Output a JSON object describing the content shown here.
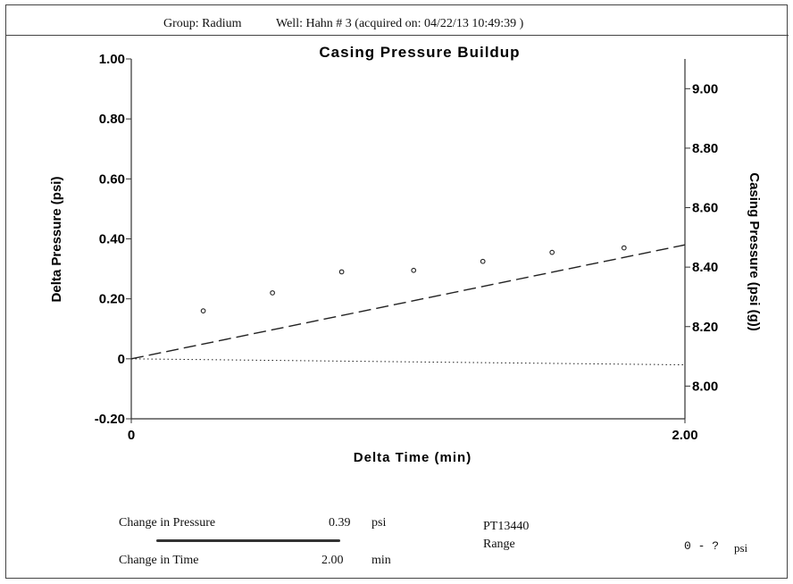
{
  "header": {
    "group": "Group: Radium",
    "well": "Well: Hahn # 3 (acquired on: 04/22/13 10:49:39 )"
  },
  "chart_data": {
    "type": "scatter",
    "title": "Casing Pressure Buildup",
    "xlabel": "Delta Time (min)",
    "ylabel": "Delta Pressure (psi)",
    "y2label": "Casing Pressure (psi (g))",
    "xlim": [
      0,
      2.0
    ],
    "ylim": [
      -0.2,
      1.0
    ],
    "y2lim": [
      7.89,
      9.1
    ],
    "x_ticks": [
      "0",
      "2.00"
    ],
    "y_ticks": [
      "-0.20",
      "0",
      "0.20",
      "0.40",
      "0.60",
      "0.80",
      "1.00"
    ],
    "y2_ticks": [
      "8.00",
      "8.20",
      "8.40",
      "8.60",
      "8.80",
      "9.00"
    ],
    "grid": false,
    "series": [
      {
        "style": "points",
        "x": [
          0.26,
          0.51,
          0.76,
          1.02,
          1.27,
          1.52,
          1.78
        ],
        "y": [
          0.16,
          0.22,
          0.29,
          0.295,
          0.325,
          0.355,
          0.37
        ]
      },
      {
        "style": "dashed-line",
        "x": [
          0,
          2.0
        ],
        "y": [
          0,
          0.38
        ]
      },
      {
        "style": "dotted-line",
        "x": [
          0,
          2.0
        ],
        "y": [
          0,
          -0.02
        ]
      }
    ]
  },
  "footer": {
    "change_pressure_label": "Change in Pressure",
    "change_pressure_value": "0.39",
    "change_pressure_unit": "psi",
    "change_time_label": "Change in Time",
    "change_time_value": "2.00",
    "change_time_unit": "min",
    "sensor_id": "PT13440",
    "range_label": "Range",
    "range_value": "0 - ?",
    "range_unit": "psi"
  }
}
